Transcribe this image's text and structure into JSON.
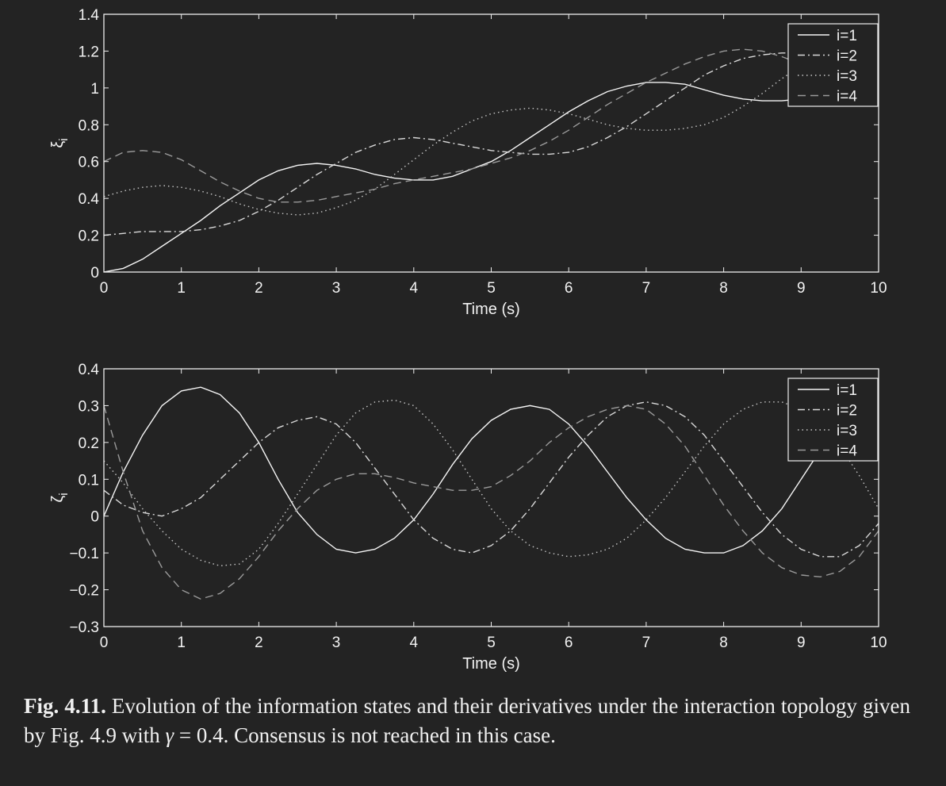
{
  "chart_data": [
    {
      "type": "line",
      "xlabel": "Time (s)",
      "ylabel": "ξ",
      "ylabel_subscript": "i",
      "xlim": [
        0,
        10
      ],
      "ylim": [
        0,
        1.4
      ],
      "xticks": [
        "0",
        "1",
        "2",
        "3",
        "4",
        "5",
        "6",
        "7",
        "8",
        "9",
        "10"
      ],
      "yticks": [
        "0",
        "0.2",
        "0.4",
        "0.6",
        "0.8",
        "1",
        "1.2",
        "1.4"
      ],
      "grid": false,
      "legend_position": "top-right",
      "series": [
        {
          "name": "i=1",
          "style": "solid",
          "x": [
            0,
            0.25,
            0.5,
            0.75,
            1,
            1.25,
            1.5,
            1.75,
            2,
            2.25,
            2.5,
            2.75,
            3,
            3.25,
            3.5,
            3.75,
            4,
            4.25,
            4.5,
            4.75,
            5,
            5.25,
            5.5,
            5.75,
            6,
            6.25,
            6.5,
            6.75,
            7,
            7.25,
            7.5,
            7.75,
            8,
            8.25,
            8.5,
            8.75,
            9,
            9.25,
            9.5,
            9.75,
            10
          ],
          "y": [
            0,
            0.02,
            0.07,
            0.14,
            0.21,
            0.28,
            0.36,
            0.43,
            0.5,
            0.55,
            0.58,
            0.59,
            0.58,
            0.56,
            0.53,
            0.51,
            0.5,
            0.5,
            0.52,
            0.56,
            0.6,
            0.66,
            0.73,
            0.8,
            0.87,
            0.93,
            0.98,
            1.01,
            1.03,
            1.03,
            1.02,
            0.99,
            0.96,
            0.94,
            0.93,
            0.93,
            0.94,
            0.98,
            1.05,
            1.13,
            1.2
          ]
        },
        {
          "name": "i=2",
          "style": "dashdot",
          "x": [
            0,
            0.25,
            0.5,
            0.75,
            1,
            1.25,
            1.5,
            1.75,
            2,
            2.25,
            2.5,
            2.75,
            3,
            3.25,
            3.5,
            3.75,
            4,
            4.25,
            4.5,
            4.75,
            5,
            5.25,
            5.5,
            5.75,
            6,
            6.25,
            6.5,
            6.75,
            7,
            7.25,
            7.5,
            7.75,
            8,
            8.25,
            8.5,
            8.75,
            9,
            9.25,
            9.5,
            9.75,
            10
          ],
          "y": [
            0.2,
            0.21,
            0.22,
            0.22,
            0.22,
            0.23,
            0.25,
            0.28,
            0.33,
            0.39,
            0.46,
            0.53,
            0.59,
            0.65,
            0.69,
            0.72,
            0.73,
            0.72,
            0.7,
            0.68,
            0.66,
            0.65,
            0.64,
            0.64,
            0.65,
            0.68,
            0.73,
            0.79,
            0.86,
            0.93,
            1.0,
            1.07,
            1.12,
            1.16,
            1.18,
            1.19,
            1.19,
            1.18,
            1.16,
            1.15,
            1.15
          ]
        },
        {
          "name": "i=3",
          "style": "dotted",
          "x": [
            0,
            0.25,
            0.5,
            0.75,
            1,
            1.25,
            1.5,
            1.75,
            2,
            2.25,
            2.5,
            2.75,
            3,
            3.25,
            3.5,
            3.75,
            4,
            4.25,
            4.5,
            4.75,
            5,
            5.25,
            5.5,
            5.75,
            6,
            6.25,
            6.5,
            6.75,
            7,
            7.25,
            7.5,
            7.75,
            8,
            8.25,
            8.5,
            8.75,
            9,
            9.25,
            9.5,
            9.75,
            10
          ],
          "y": [
            0.41,
            0.44,
            0.46,
            0.47,
            0.46,
            0.44,
            0.41,
            0.37,
            0.34,
            0.32,
            0.31,
            0.32,
            0.35,
            0.39,
            0.45,
            0.53,
            0.61,
            0.69,
            0.76,
            0.82,
            0.86,
            0.88,
            0.89,
            0.88,
            0.86,
            0.83,
            0.8,
            0.78,
            0.77,
            0.77,
            0.78,
            0.8,
            0.84,
            0.9,
            0.97,
            1.05,
            1.12,
            1.17,
            1.19,
            1.19,
            1.17
          ]
        },
        {
          "name": "i=4",
          "style": "dashed",
          "x": [
            0,
            0.25,
            0.5,
            0.75,
            1,
            1.25,
            1.5,
            1.75,
            2,
            2.25,
            2.5,
            2.75,
            3,
            3.25,
            3.5,
            3.75,
            4,
            4.25,
            4.5,
            4.75,
            5,
            5.25,
            5.5,
            5.75,
            6,
            6.25,
            6.5,
            6.75,
            7,
            7.25,
            7.5,
            7.75,
            8,
            8.25,
            8.5,
            8.75,
            9,
            9.25,
            9.5,
            9.75,
            10
          ],
          "y": [
            0.6,
            0.65,
            0.66,
            0.65,
            0.61,
            0.55,
            0.49,
            0.44,
            0.4,
            0.38,
            0.38,
            0.39,
            0.41,
            0.43,
            0.45,
            0.48,
            0.5,
            0.52,
            0.54,
            0.56,
            0.59,
            0.62,
            0.66,
            0.71,
            0.77,
            0.84,
            0.91,
            0.97,
            1.03,
            1.08,
            1.13,
            1.17,
            1.2,
            1.21,
            1.2,
            1.17,
            1.13,
            1.09,
            1.06,
            1.05,
            1.06
          ]
        }
      ]
    },
    {
      "type": "line",
      "xlabel": "Time (s)",
      "ylabel": "ζ",
      "ylabel_subscript": "i",
      "xlim": [
        0,
        10
      ],
      "ylim": [
        -0.3,
        0.4
      ],
      "xticks": [
        "0",
        "1",
        "2",
        "3",
        "4",
        "5",
        "6",
        "7",
        "8",
        "9",
        "10"
      ],
      "yticks": [
        "−0.3",
        "−0.2",
        "−0.1",
        "0",
        "0.1",
        "0.2",
        "0.3",
        "0.4"
      ],
      "grid": false,
      "legend_position": "top-right",
      "series": [
        {
          "name": "i=1",
          "style": "solid",
          "x": [
            0,
            0.25,
            0.5,
            0.75,
            1,
            1.25,
            1.5,
            1.75,
            2,
            2.25,
            2.5,
            2.75,
            3,
            3.25,
            3.5,
            3.75,
            4,
            4.25,
            4.5,
            4.75,
            5,
            5.25,
            5.5,
            5.75,
            6,
            6.25,
            6.5,
            6.75,
            7,
            7.25,
            7.5,
            7.75,
            8,
            8.25,
            8.5,
            8.75,
            9,
            9.25,
            9.5,
            9.75,
            10
          ],
          "y": [
            0,
            0.12,
            0.22,
            0.3,
            0.34,
            0.35,
            0.33,
            0.28,
            0.2,
            0.1,
            0.01,
            -0.05,
            -0.09,
            -0.1,
            -0.09,
            -0.06,
            -0.01,
            0.06,
            0.14,
            0.21,
            0.26,
            0.29,
            0.3,
            0.29,
            0.25,
            0.19,
            0.12,
            0.05,
            -0.01,
            -0.06,
            -0.09,
            -0.1,
            -0.1,
            -0.08,
            -0.04,
            0.02,
            0.1,
            0.18,
            0.25,
            0.29,
            0.31
          ]
        },
        {
          "name": "i=2",
          "style": "dashdot",
          "x": [
            0,
            0.25,
            0.5,
            0.75,
            1,
            1.25,
            1.5,
            1.75,
            2,
            2.25,
            2.5,
            2.75,
            3,
            3.25,
            3.5,
            3.75,
            4,
            4.25,
            4.5,
            4.75,
            5,
            5.25,
            5.5,
            5.75,
            6,
            6.25,
            6.5,
            6.75,
            7,
            7.25,
            7.5,
            7.75,
            8,
            8.25,
            8.5,
            8.75,
            9,
            9.25,
            9.5,
            9.75,
            10
          ],
          "y": [
            0.07,
            0.03,
            0.01,
            0.0,
            0.02,
            0.05,
            0.1,
            0.15,
            0.2,
            0.24,
            0.26,
            0.27,
            0.25,
            0.2,
            0.13,
            0.06,
            -0.01,
            -0.06,
            -0.09,
            -0.1,
            -0.08,
            -0.04,
            0.02,
            0.09,
            0.16,
            0.22,
            0.27,
            0.3,
            0.31,
            0.3,
            0.27,
            0.22,
            0.15,
            0.08,
            0.01,
            -0.05,
            -0.09,
            -0.11,
            -0.11,
            -0.08,
            -0.02
          ]
        },
        {
          "name": "i=3",
          "style": "dotted",
          "x": [
            0,
            0.25,
            0.5,
            0.75,
            1,
            1.25,
            1.5,
            1.75,
            2,
            2.25,
            2.5,
            2.75,
            3,
            3.25,
            3.5,
            3.75,
            4,
            4.25,
            4.5,
            4.75,
            5,
            5.25,
            5.5,
            5.75,
            6,
            6.25,
            6.5,
            6.75,
            7,
            7.25,
            7.5,
            7.75,
            8,
            8.25,
            8.5,
            8.75,
            9,
            9.25,
            9.5,
            9.75,
            10
          ],
          "y": [
            0.15,
            0.09,
            0.02,
            -0.04,
            -0.09,
            -0.12,
            -0.135,
            -0.13,
            -0.09,
            -0.02,
            0.06,
            0.14,
            0.22,
            0.28,
            0.31,
            0.315,
            0.3,
            0.25,
            0.18,
            0.1,
            0.02,
            -0.04,
            -0.08,
            -0.1,
            -0.11,
            -0.105,
            -0.09,
            -0.06,
            -0.01,
            0.05,
            0.12,
            0.19,
            0.25,
            0.29,
            0.31,
            0.31,
            0.29,
            0.25,
            0.19,
            0.11,
            0.02
          ]
        },
        {
          "name": "i=4",
          "style": "dashed",
          "x": [
            0,
            0.25,
            0.5,
            0.75,
            1,
            1.25,
            1.5,
            1.75,
            2,
            2.25,
            2.5,
            2.75,
            3,
            3.25,
            3.5,
            3.75,
            4,
            4.25,
            4.5,
            4.75,
            5,
            5.25,
            5.5,
            5.75,
            6,
            6.25,
            6.5,
            6.75,
            7,
            7.25,
            7.5,
            7.75,
            8,
            8.25,
            8.5,
            8.75,
            9,
            9.25,
            9.5,
            9.75,
            10
          ],
          "y": [
            0.3,
            0.12,
            -0.04,
            -0.14,
            -0.2,
            -0.225,
            -0.21,
            -0.17,
            -0.11,
            -0.04,
            0.02,
            0.07,
            0.1,
            0.115,
            0.115,
            0.105,
            0.09,
            0.08,
            0.07,
            0.07,
            0.08,
            0.11,
            0.15,
            0.2,
            0.24,
            0.27,
            0.29,
            0.3,
            0.29,
            0.25,
            0.19,
            0.11,
            0.03,
            -0.04,
            -0.1,
            -0.14,
            -0.16,
            -0.165,
            -0.15,
            -0.11,
            -0.04
          ]
        }
      ]
    }
  ],
  "caption": {
    "label": "Fig. 4.11.",
    "text_before_gamma": " Evolution of the information states and their derivatives under the interaction topology given by Fig. 4.9 with ",
    "gamma": "γ",
    "text_after_gamma": " = 0.4. Consensus is not reached in this case."
  },
  "colors": {
    "background": "#232323",
    "axes": "#eeeeee",
    "text": "#f2f2f2",
    "series": [
      "#f5f5f5",
      "#d9d9d9",
      "#c8c8c8",
      "#9a9a9a"
    ]
  }
}
